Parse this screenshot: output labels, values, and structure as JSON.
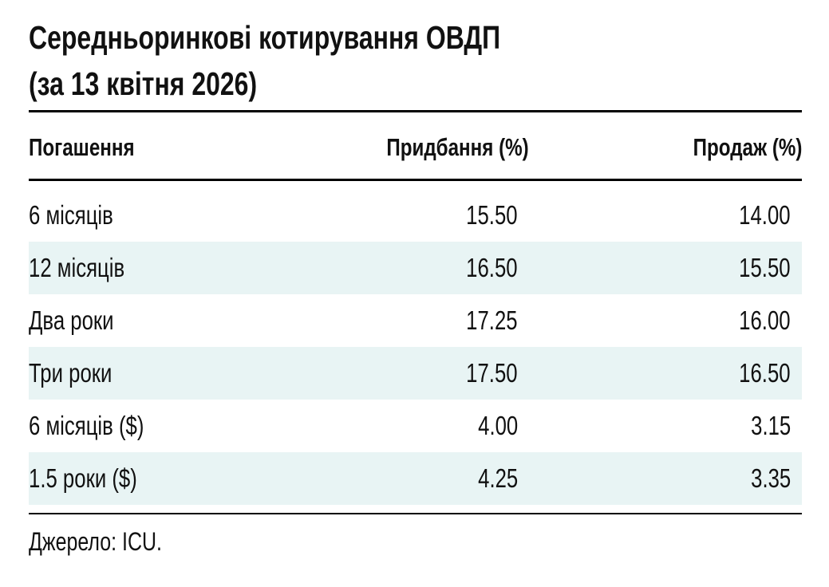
{
  "title": {
    "line1": "Середньоринкові котирування ОВДП",
    "line2": "(за 13 квітня 2026)"
  },
  "table": {
    "headers": [
      "Погашення",
      "Придбання (%)",
      "Продаж (%)"
    ],
    "rows": [
      [
        "6 місяців",
        "15.50",
        "14.00"
      ],
      [
        "12 місяців",
        "16.50",
        "15.50"
      ],
      [
        "Два роки",
        "17.25",
        "16.00"
      ],
      [
        "Три роки",
        "17.50",
        "16.50"
      ],
      [
        "6 місяців ($)",
        "4.00",
        "3.15"
      ],
      [
        "1.5 роки ($)",
        "4.25",
        "3.35"
      ]
    ]
  },
  "source": "Джерело: ICU.",
  "colors": {
    "stripe": "#e8f4f4",
    "rule": "#000000"
  }
}
